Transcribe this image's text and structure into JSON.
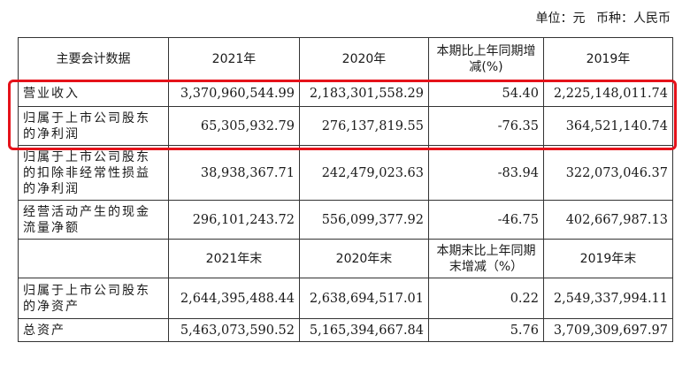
{
  "unit": {
    "unit_label": "单位：元",
    "currency_label": "币种：人民币"
  },
  "header1": {
    "c0": "主要会计数据",
    "c1": "2021年",
    "c2": "2020年",
    "c3": "本期比上年同期增减(%)",
    "c4": "2019年"
  },
  "rows1": [
    {
      "label": "营业收入",
      "v2021": "3,370,960,544.99",
      "v2020": "2,183,301,558.29",
      "change": "54.40",
      "v2019": "2,225,148,011.74"
    },
    {
      "label": "归属于上市公司股东的净利润",
      "v2021": "65,305,932.79",
      "v2020": "276,137,819.55",
      "change": "-76.35",
      "v2019": "364,521,140.74"
    },
    {
      "label": "归属于上市公司股东的扣除非经常性损益的净利润",
      "v2021": "38,938,367.71",
      "v2020": "242,479,023.63",
      "change": "-83.94",
      "v2019": "322,073,046.37"
    },
    {
      "label": "经营活动产生的现金流量净额",
      "v2021": "296,101,243.72",
      "v2020": "556,099,377.92",
      "change": "-46.75",
      "v2019": "402,667,987.13"
    }
  ],
  "header2": {
    "c0": "",
    "c1": "2021年末",
    "c2": "2020年末",
    "c3": "本期末比上年同期末增减（%）",
    "c4": "2019年末"
  },
  "rows2": [
    {
      "label": "归属于上市公司股东的净资产",
      "v2021": "2,644,395,488.44",
      "v2020": "2,638,694,517.01",
      "change": "0.22",
      "v2019": "2,549,337,994.11"
    },
    {
      "label": "总资产",
      "v2021": "5,463,073,590.52",
      "v2020": "5,165,394,667.84",
      "change": "5.76",
      "v2019": "3,709,309,697.97"
    }
  ],
  "highlight_color": "#e5121a"
}
